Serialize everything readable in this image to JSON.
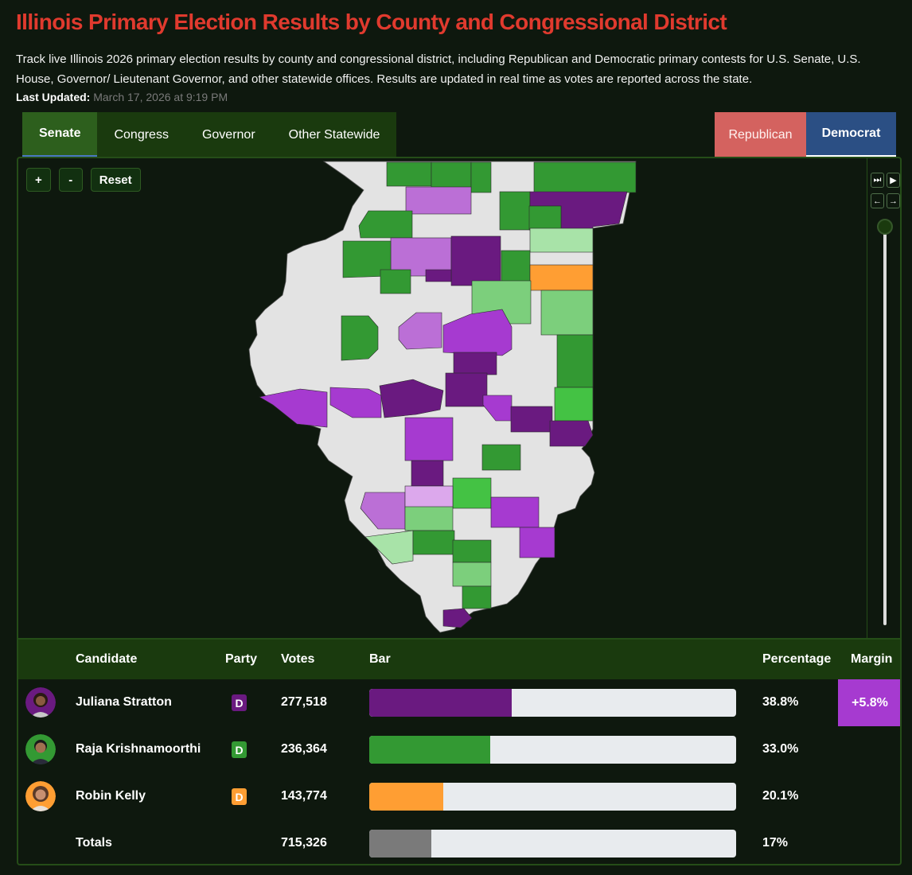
{
  "header": {
    "title": "Illinois Primary Election Results by County and Congressional District",
    "description": "Track live Illinois 2026 primary election results by county and congressional district, including Republican and Democratic primary contests for U.S. Senate, U.S. House, Governor/ Lieutenant Governor, and other statewide offices. Results are updated in real time as votes are reported across the state.",
    "updated_label": "Last Updated:",
    "updated_value": "March 17, 2026 at 9:19 PM"
  },
  "tabs": [
    "Senate",
    "Congress",
    "Governor",
    "Other Statewide"
  ],
  "party_tabs": {
    "republican": "Republican",
    "democrat": "Democrat"
  },
  "zoom": {
    "plus": "+",
    "minus": "-",
    "reset": "Reset"
  },
  "timeline": {
    "skip_end": "⏭",
    "play": "▶",
    "back": "←",
    "forward": "→"
  },
  "colors": {
    "stratton": "#6a1a80",
    "krishnamoorthi": "#339933",
    "kelly": "#ff9e33",
    "totals": "#7a7a7a",
    "margin": "#a63ad0",
    "no_result": "#e3e3e3"
  },
  "table": {
    "headers": {
      "candidate": "Candidate",
      "party": "Party",
      "votes": "Votes",
      "bar": "Bar",
      "percentage": "Percentage",
      "margin": "Margin"
    },
    "rows": [
      {
        "name": "Juliana Stratton",
        "party": "D",
        "votes": "277,518",
        "share": 0.388,
        "percentage": "38.8%",
        "margin": "+5.8%"
      },
      {
        "name": "Raja Krishnamoorthi",
        "party": "D",
        "votes": "236,364",
        "share": 0.33,
        "percentage": "33.0%"
      },
      {
        "name": "Robin Kelly",
        "party": "D",
        "votes": "143,774",
        "share": 0.201,
        "percentage": "20.1%"
      }
    ],
    "totals": {
      "label": "Totals",
      "votes": "715,326",
      "share": 0.17,
      "percentage": "17%"
    }
  }
}
